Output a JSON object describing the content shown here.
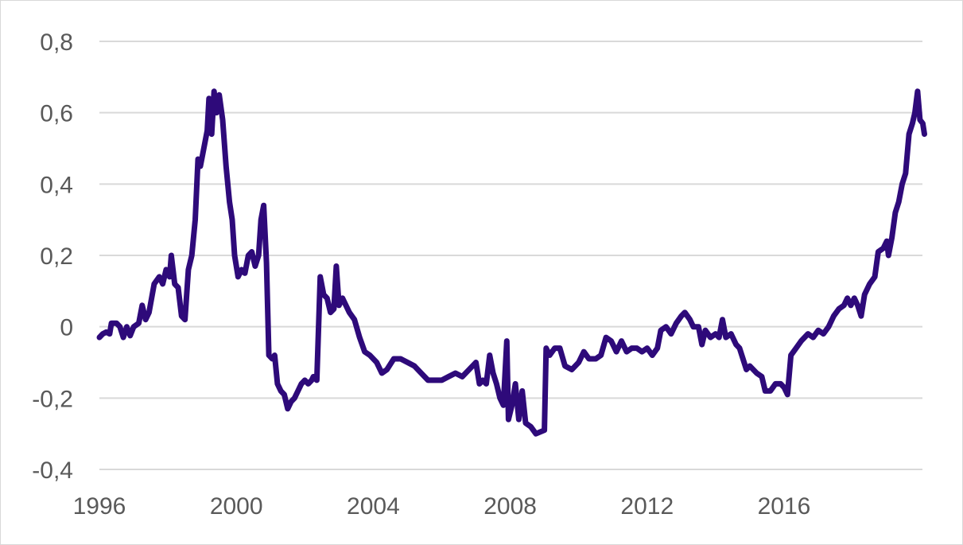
{
  "chart_data": {
    "type": "line",
    "title": "",
    "xlabel": "",
    "ylabel": "",
    "xlim": [
      1996,
      2019.75
    ],
    "ylim": [
      -0.4,
      0.8
    ],
    "grid": true,
    "line_color": "#2e0a7a",
    "grid_color": "#d9d9d9",
    "x_ticks": [
      {
        "value": 1996,
        "label": "1996"
      },
      {
        "value": 2000,
        "label": "2000"
      },
      {
        "value": 2004,
        "label": "2004"
      },
      {
        "value": 2008,
        "label": "2008"
      },
      {
        "value": 2012,
        "label": "2012"
      },
      {
        "value": 2016,
        "label": "2016"
      }
    ],
    "y_ticks": [
      {
        "value": 0.8,
        "label": "0,8"
      },
      {
        "value": 0.6,
        "label": "0,6"
      },
      {
        "value": 0.4,
        "label": "0,4"
      },
      {
        "value": 0.2,
        "label": "0,2"
      },
      {
        "value": 0,
        "label": "0"
      },
      {
        "value": -0.2,
        "label": "-0,2"
      },
      {
        "value": -0.4,
        "label": "-0,4"
      }
    ],
    "series": [
      {
        "values": [
          [
            1996.0,
            -0.03
          ],
          [
            1996.1,
            -0.02
          ],
          [
            1996.2,
            -0.015
          ],
          [
            1996.3,
            -0.02
          ],
          [
            1996.35,
            0.01
          ],
          [
            1996.5,
            0.01
          ],
          [
            1996.6,
            0.0
          ],
          [
            1996.7,
            -0.03
          ],
          [
            1996.8,
            0.0
          ],
          [
            1996.9,
            -0.025
          ],
          [
            1997.0,
            0.0
          ],
          [
            1997.15,
            0.01
          ],
          [
            1997.25,
            0.06
          ],
          [
            1997.35,
            0.02
          ],
          [
            1997.45,
            0.04
          ],
          [
            1997.6,
            0.12
          ],
          [
            1997.75,
            0.14
          ],
          [
            1997.85,
            0.12
          ],
          [
            1997.95,
            0.16
          ],
          [
            1998.05,
            0.14
          ],
          [
            1998.1,
            0.2
          ],
          [
            1998.2,
            0.12
          ],
          [
            1998.3,
            0.11
          ],
          [
            1998.4,
            0.03
          ],
          [
            1998.5,
            0.02
          ],
          [
            1998.6,
            0.16
          ],
          [
            1998.7,
            0.2
          ],
          [
            1998.8,
            0.3
          ],
          [
            1998.88,
            0.47
          ],
          [
            1998.95,
            0.45
          ],
          [
            1999.05,
            0.5
          ],
          [
            1999.15,
            0.55
          ],
          [
            1999.2,
            0.64
          ],
          [
            1999.28,
            0.54
          ],
          [
            1999.35,
            0.66
          ],
          [
            1999.42,
            0.6
          ],
          [
            1999.5,
            0.65
          ],
          [
            1999.6,
            0.58
          ],
          [
            1999.7,
            0.45
          ],
          [
            1999.8,
            0.35
          ],
          [
            1999.88,
            0.3
          ],
          [
            1999.95,
            0.2
          ],
          [
            2000.05,
            0.14
          ],
          [
            2000.15,
            0.16
          ],
          [
            2000.25,
            0.15
          ],
          [
            2000.35,
            0.2
          ],
          [
            2000.45,
            0.21
          ],
          [
            2000.55,
            0.17
          ],
          [
            2000.65,
            0.2
          ],
          [
            2000.72,
            0.3
          ],
          [
            2000.8,
            0.34
          ],
          [
            2000.88,
            0.18
          ],
          [
            2000.95,
            -0.08
          ],
          [
            2001.05,
            -0.09
          ],
          [
            2001.12,
            -0.08
          ],
          [
            2001.2,
            -0.16
          ],
          [
            2001.3,
            -0.18
          ],
          [
            2001.4,
            -0.19
          ],
          [
            2001.5,
            -0.23
          ],
          [
            2001.6,
            -0.21
          ],
          [
            2001.7,
            -0.2
          ],
          [
            2001.8,
            -0.18
          ],
          [
            2001.9,
            -0.16
          ],
          [
            2002.0,
            -0.15
          ],
          [
            2002.1,
            -0.16
          ],
          [
            2002.2,
            -0.15
          ],
          [
            2002.25,
            -0.14
          ],
          [
            2002.35,
            -0.15
          ],
          [
            2002.45,
            0.14
          ],
          [
            2002.55,
            0.09
          ],
          [
            2002.65,
            0.08
          ],
          [
            2002.75,
            0.04
          ],
          [
            2002.85,
            0.05
          ],
          [
            2002.92,
            0.17
          ],
          [
            2003.0,
            0.06
          ],
          [
            2003.1,
            0.08
          ],
          [
            2003.2,
            0.06
          ],
          [
            2003.3,
            0.04
          ],
          [
            2003.45,
            0.02
          ],
          [
            2003.6,
            -0.03
          ],
          [
            2003.75,
            -0.07
          ],
          [
            2003.9,
            -0.08
          ],
          [
            2004.1,
            -0.1
          ],
          [
            2004.25,
            -0.13
          ],
          [
            2004.4,
            -0.12
          ],
          [
            2004.6,
            -0.09
          ],
          [
            2004.8,
            -0.09
          ],
          [
            2005.0,
            -0.1
          ],
          [
            2005.2,
            -0.11
          ],
          [
            2005.4,
            -0.13
          ],
          [
            2005.6,
            -0.15
          ],
          [
            2005.8,
            -0.15
          ],
          [
            2006.0,
            -0.15
          ],
          [
            2006.2,
            -0.14
          ],
          [
            2006.4,
            -0.13
          ],
          [
            2006.6,
            -0.14
          ],
          [
            2006.8,
            -0.12
          ],
          [
            2007.0,
            -0.1
          ],
          [
            2007.1,
            -0.16
          ],
          [
            2007.2,
            -0.15
          ],
          [
            2007.3,
            -0.16
          ],
          [
            2007.4,
            -0.08
          ],
          [
            2007.5,
            -0.13
          ],
          [
            2007.6,
            -0.16
          ],
          [
            2007.7,
            -0.2
          ],
          [
            2007.8,
            -0.22
          ],
          [
            2007.9,
            -0.04
          ],
          [
            2007.95,
            -0.26
          ],
          [
            2008.05,
            -0.22
          ],
          [
            2008.15,
            -0.16
          ],
          [
            2008.25,
            -0.26
          ],
          [
            2008.35,
            -0.18
          ],
          [
            2008.45,
            -0.27
          ],
          [
            2008.6,
            -0.28
          ],
          [
            2008.75,
            -0.3
          ],
          [
            2009.0,
            -0.29
          ],
          [
            2009.05,
            -0.06
          ],
          [
            2009.15,
            -0.08
          ],
          [
            2009.3,
            -0.06
          ],
          [
            2009.45,
            -0.06
          ],
          [
            2009.6,
            -0.11
          ],
          [
            2009.8,
            -0.12
          ],
          [
            2010.0,
            -0.1
          ],
          [
            2010.15,
            -0.07
          ],
          [
            2010.3,
            -0.09
          ],
          [
            2010.5,
            -0.09
          ],
          [
            2010.65,
            -0.08
          ],
          [
            2010.8,
            -0.03
          ],
          [
            2010.95,
            -0.04
          ],
          [
            2011.1,
            -0.07
          ],
          [
            2011.25,
            -0.04
          ],
          [
            2011.4,
            -0.07
          ],
          [
            2011.55,
            -0.06
          ],
          [
            2011.7,
            -0.06
          ],
          [
            2011.85,
            -0.07
          ],
          [
            2012.0,
            -0.06
          ],
          [
            2012.15,
            -0.08
          ],
          [
            2012.3,
            -0.06
          ],
          [
            2012.4,
            -0.01
          ],
          [
            2012.55,
            0.0
          ],
          [
            2012.7,
            -0.02
          ],
          [
            2012.85,
            0.01
          ],
          [
            2013.0,
            0.03
          ],
          [
            2013.1,
            0.04
          ],
          [
            2013.25,
            0.02
          ],
          [
            2013.35,
            0.0
          ],
          [
            2013.5,
            0.0
          ],
          [
            2013.6,
            -0.05
          ],
          [
            2013.7,
            -0.01
          ],
          [
            2013.85,
            -0.03
          ],
          [
            2014.0,
            -0.02
          ],
          [
            2014.1,
            -0.03
          ],
          [
            2014.2,
            0.02
          ],
          [
            2014.3,
            -0.03
          ],
          [
            2014.45,
            -0.02
          ],
          [
            2014.6,
            -0.05
          ],
          [
            2014.7,
            -0.06
          ],
          [
            2014.8,
            -0.09
          ],
          [
            2014.9,
            -0.12
          ],
          [
            2015.0,
            -0.11
          ],
          [
            2015.2,
            -0.13
          ],
          [
            2015.35,
            -0.14
          ],
          [
            2015.45,
            -0.18
          ],
          [
            2015.6,
            -0.18
          ],
          [
            2015.75,
            -0.16
          ],
          [
            2015.9,
            -0.16
          ],
          [
            2016.0,
            -0.17
          ],
          [
            2016.1,
            -0.19
          ],
          [
            2016.2,
            -0.08
          ],
          [
            2016.35,
            -0.06
          ],
          [
            2016.5,
            -0.04
          ],
          [
            2016.7,
            -0.02
          ],
          [
            2016.85,
            -0.03
          ],
          [
            2017.0,
            -0.01
          ],
          [
            2017.15,
            -0.02
          ],
          [
            2017.3,
            0.0
          ],
          [
            2017.45,
            0.03
          ],
          [
            2017.6,
            0.05
          ],
          [
            2017.75,
            0.06
          ],
          [
            2017.85,
            0.08
          ],
          [
            2017.95,
            0.06
          ],
          [
            2018.05,
            0.08
          ],
          [
            2018.15,
            0.06
          ],
          [
            2018.25,
            0.03
          ],
          [
            2018.35,
            0.09
          ],
          [
            2018.5,
            0.12
          ],
          [
            2018.65,
            0.14
          ],
          [
            2018.75,
            0.21
          ],
          [
            2018.9,
            0.22
          ],
          [
            2019.0,
            0.24
          ],
          [
            2019.05,
            0.2
          ],
          [
            2019.15,
            0.25
          ],
          [
            2019.25,
            0.32
          ],
          [
            2019.35,
            0.35
          ],
          [
            2019.45,
            0.4
          ],
          [
            2019.55,
            0.43
          ],
          [
            2019.65,
            0.54
          ],
          [
            2019.75,
            0.57
          ],
          [
            2019.82,
            0.6
          ],
          [
            2019.9,
            0.66
          ],
          [
            2019.97,
            0.58
          ],
          [
            2020.05,
            0.57
          ],
          [
            2020.1,
            0.54
          ]
        ]
      }
    ]
  }
}
